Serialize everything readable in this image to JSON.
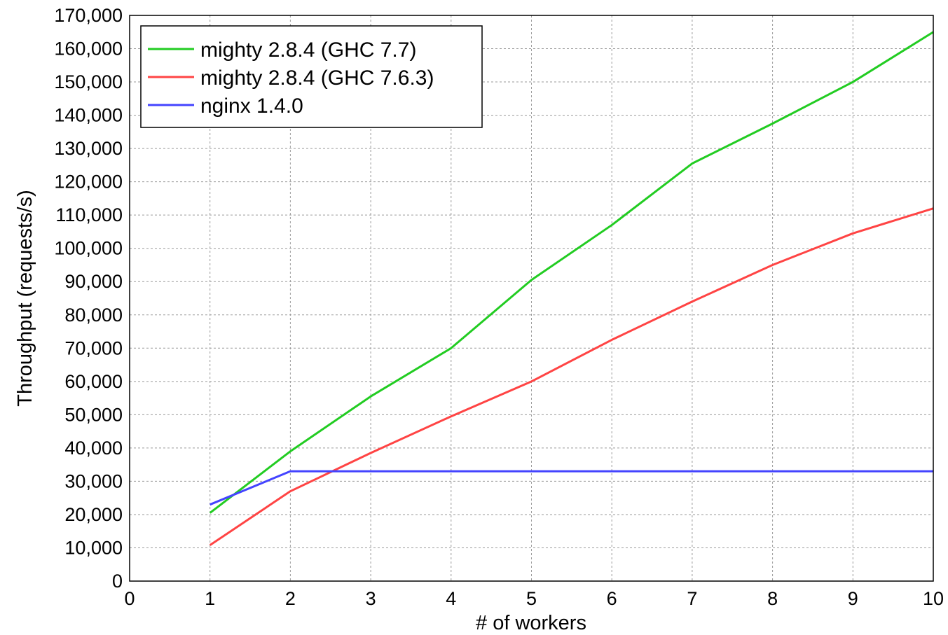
{
  "chart_data": {
    "type": "line",
    "title": "",
    "xlabel": "# of workers",
    "ylabel": "Throughput (requests/s)",
    "xlim": [
      0,
      10
    ],
    "ylim": [
      0,
      170000
    ],
    "x_ticks": [
      "0",
      "1",
      "2",
      "3",
      "4",
      "5",
      "6",
      "7",
      "8",
      "9",
      "10"
    ],
    "y_ticks": [
      "0",
      "10,000",
      "20,000",
      "30,000",
      "40,000",
      "50,000",
      "60,000",
      "70,000",
      "80,000",
      "90,000",
      "100,000",
      "110,000",
      "120,000",
      "130,000",
      "140,000",
      "150,000",
      "160,000",
      "170,000"
    ],
    "grid": true,
    "legend_position": "top-left",
    "x": [
      1,
      2,
      3,
      4,
      5,
      6,
      7,
      8,
      9,
      10
    ],
    "series": [
      {
        "name": "mighty 2.8.4 (GHC 7.7)",
        "color": "#22cc22",
        "values": [
          20500,
          39000,
          55500,
          70000,
          90500,
          107000,
          125500,
          137500,
          150000,
          165000
        ]
      },
      {
        "name": "mighty 2.8.4 (GHC 7.6.3)",
        "color": "#ff4444",
        "values": [
          10800,
          27000,
          38500,
          49500,
          60000,
          72500,
          84000,
          95000,
          104500,
          112000
        ]
      },
      {
        "name": "nginx 1.4.0",
        "color": "#4444ff",
        "values": [
          23000,
          33000,
          33000,
          33000,
          33000,
          33000,
          33000,
          33000,
          33000,
          33000
        ]
      }
    ]
  }
}
